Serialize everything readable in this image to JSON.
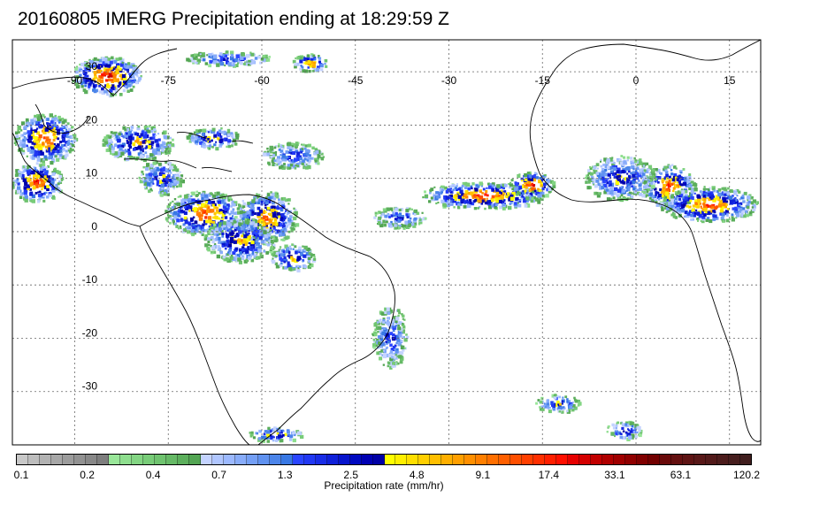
{
  "title": "20160805 IMERG Precipitation ending at 18:29:59 Z",
  "map": {
    "lon_range": [
      -100,
      20
    ],
    "lat_range": [
      -40,
      36
    ],
    "lon_labels": [
      "-90",
      "-75",
      "-60",
      "-45",
      "-30",
      "-15",
      "0",
      "15"
    ],
    "lat_labels": [
      "30",
      "20",
      "10",
      "0",
      "-10",
      "-20",
      "-30"
    ],
    "gridlines": true
  },
  "colorbar": {
    "label": "Precipitation rate (mm/hr)",
    "tick_labels": [
      "0.1",
      "0.2",
      "0.4",
      "0.7",
      "1.3",
      "2.5",
      "4.8",
      "9.1",
      "17.4",
      "33.1",
      "63.1",
      "120.2"
    ],
    "colors": [
      "#c8c8c8",
      "#bdbdbd",
      "#b2b2b2",
      "#a7a7a7",
      "#9c9c9c",
      "#929292",
      "#888888",
      "#7e7e7e",
      "#99e699",
      "#8ede8e",
      "#83d583",
      "#78cc78",
      "#6fc36f",
      "#66b966",
      "#5caf5c",
      "#53a553",
      "#c4d3ff",
      "#b0c6ff",
      "#9cb9ff",
      "#88acfa",
      "#749ff5",
      "#6092f0",
      "#4c85ea",
      "#3878e4",
      "#2a45ff",
      "#2138f3",
      "#182ce6",
      "#0f20d9",
      "#0714cc",
      "#0009c0",
      "#0000b3",
      "#0000a6",
      "#ffff00",
      "#ffef00",
      "#ffdf00",
      "#ffcf00",
      "#ffbf00",
      "#ffaf00",
      "#ff9f00",
      "#ff8f00",
      "#ff7f00",
      "#ff6f00",
      "#ff5f00",
      "#ff4f00",
      "#ff3f00",
      "#ff2f00",
      "#ff1f00",
      "#ff0f00",
      "#e60000",
      "#d40000",
      "#c20000",
      "#b00000",
      "#a00000",
      "#900000",
      "#800000",
      "#720000",
      "#6a0a0a",
      "#641010",
      "#5e1414",
      "#581818",
      "#521a1a",
      "#4c1c1c",
      "#461e1e",
      "#401e1e"
    ]
  }
}
